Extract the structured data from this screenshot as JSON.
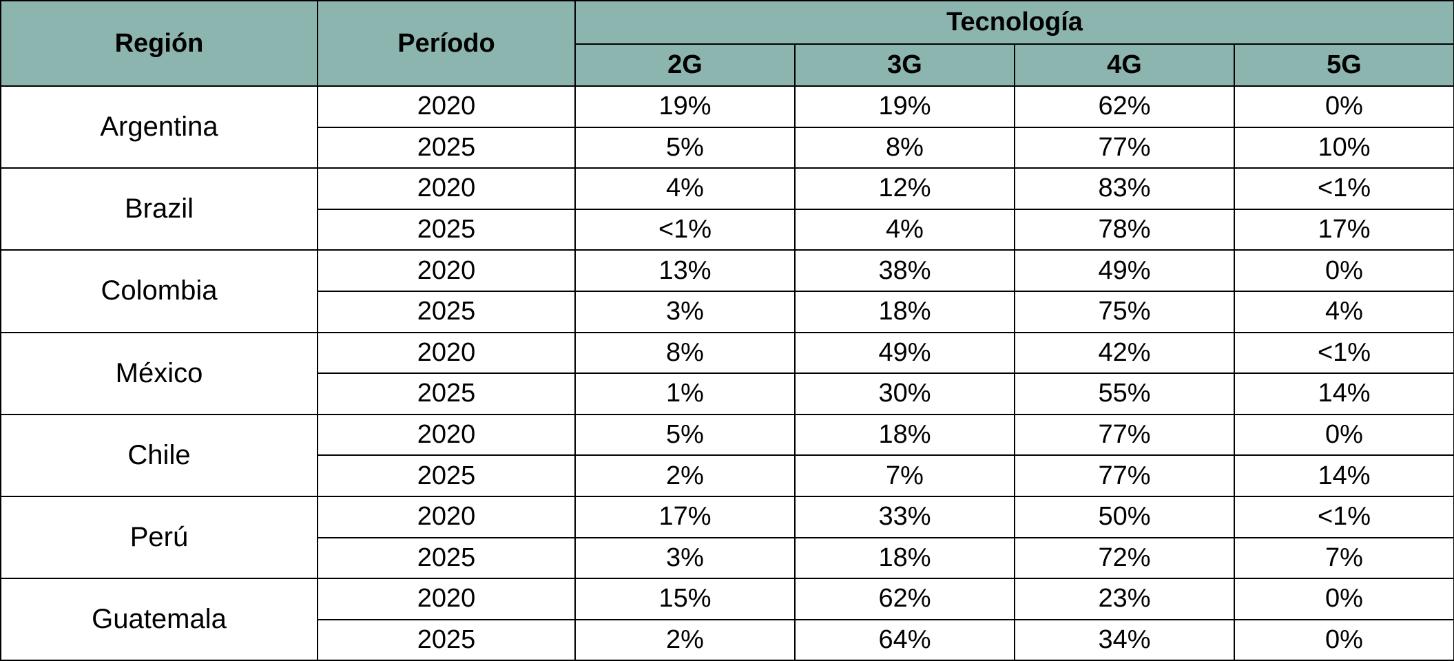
{
  "table": {
    "headers": {
      "region": "Región",
      "period": "Período",
      "technology": "Tecnología",
      "tech_columns": [
        "2G",
        "3G",
        "4G",
        "5G"
      ]
    },
    "regions": [
      {
        "name": "Argentina",
        "rows": [
          {
            "period": "2020",
            "values": [
              "19%",
              "19%",
              "62%",
              "0%"
            ]
          },
          {
            "period": "2025",
            "values": [
              "5%",
              "8%",
              "77%",
              "10%"
            ]
          }
        ]
      },
      {
        "name": "Brazil",
        "rows": [
          {
            "period": "2020",
            "values": [
              "4%",
              "12%",
              "83%",
              "<1%"
            ]
          },
          {
            "period": "2025",
            "values": [
              "<1%",
              "4%",
              "78%",
              "17%"
            ]
          }
        ]
      },
      {
        "name": "Colombia",
        "rows": [
          {
            "period": "2020",
            "values": [
              "13%",
              "38%",
              "49%",
              "0%"
            ]
          },
          {
            "period": "2025",
            "values": [
              "3%",
              "18%",
              "75%",
              "4%"
            ]
          }
        ]
      },
      {
        "name": "México",
        "rows": [
          {
            "period": "2020",
            "values": [
              "8%",
              "49%",
              "42%",
              "<1%"
            ]
          },
          {
            "period": "2025",
            "values": [
              "1%",
              "30%",
              "55%",
              "14%"
            ]
          }
        ]
      },
      {
        "name": "Chile",
        "rows": [
          {
            "period": "2020",
            "values": [
              "5%",
              "18%",
              "77%",
              "0%"
            ]
          },
          {
            "period": "2025",
            "values": [
              "2%",
              "7%",
              "77%",
              "14%"
            ]
          }
        ]
      },
      {
        "name": "Perú",
        "rows": [
          {
            "period": "2020",
            "values": [
              "17%",
              "33%",
              "50%",
              "<1%"
            ]
          },
          {
            "period": "2025",
            "values": [
              "3%",
              "18%",
              "72%",
              "7%"
            ]
          }
        ]
      },
      {
        "name": "Guatemala",
        "rows": [
          {
            "period": "2020",
            "values": [
              "15%",
              "62%",
              "23%",
              "0%"
            ]
          },
          {
            "period": "2025",
            "values": [
              "2%",
              "64%",
              "34%",
              "0%"
            ]
          }
        ]
      }
    ]
  },
  "colors": {
    "header_background": "#8bb5ae",
    "border": "#000000"
  }
}
